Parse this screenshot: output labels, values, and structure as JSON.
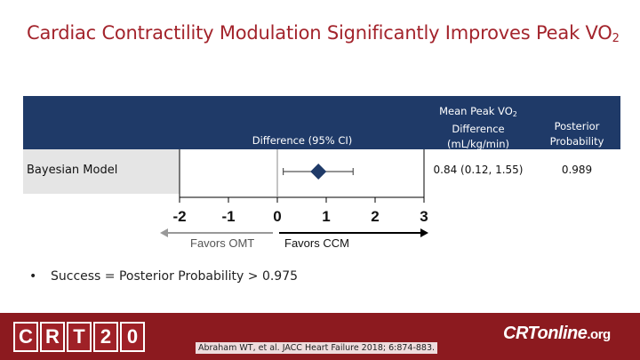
{
  "slide": {
    "title_main": "Cardiac Contractility Modulation Significantly Improves Peak VO",
    "title_sub": "2",
    "bullet": "•",
    "bullet_text": "Success = Posterior Probability > 0.975",
    "citation": "Abraham WT, et al. JACC Heart Failure 2018; 6:874-883."
  },
  "table": {
    "col_ci_header": "Difference (95% CI)",
    "col_mean_header_line1": "Mean Peak VO",
    "col_mean_header_sub": "2",
    "col_mean_header_line2": "Difference",
    "col_mean_header_line3": "(mL/kg/min)",
    "col_post_header_line1": "Posterior",
    "col_post_header_line2": "Probability",
    "rows": [
      {
        "label": "Bayesian Model",
        "mean_text": "0.84 (0.12, 1.55)",
        "posterior_text": "0.989"
      }
    ]
  },
  "chart_data": {
    "type": "forest",
    "xlim": [
      -2,
      3
    ],
    "ticks": [
      -2,
      -1,
      0,
      1,
      2,
      3
    ],
    "tick_labels": [
      "-2",
      "-1",
      "0",
      "1",
      "2",
      "3"
    ],
    "reference_line": 0,
    "points": [
      {
        "label": "Bayesian Model",
        "estimate": 0.84,
        "ci_low": 0.12,
        "ci_high": 1.55
      }
    ],
    "left_arrow_label": "Favors OMT",
    "right_arrow_label": "Favors CCM"
  },
  "logos": {
    "crt_letters": [
      "C",
      "R",
      "T",
      "2",
      "0"
    ],
    "online_main": "CRTonline",
    "online_suffix": ".org"
  },
  "colors": {
    "title": "#a3242c",
    "header_band": "#1f3a68",
    "footer": "#8c1a1f",
    "marker": "#1f3a68"
  }
}
